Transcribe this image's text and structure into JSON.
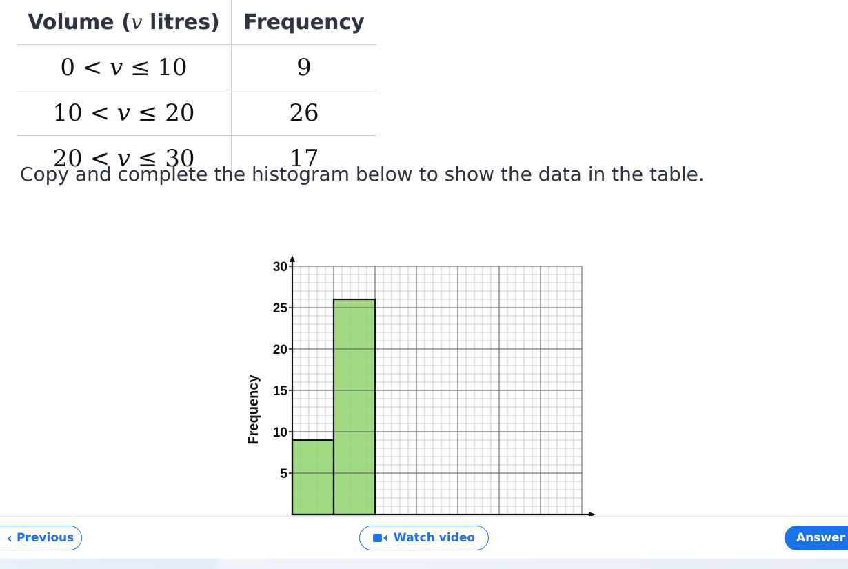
{
  "table": {
    "header": {
      "volume_prefix": "Volume (",
      "volume_var": "v",
      "volume_suffix": " litres)",
      "frequency": "Frequency"
    },
    "rows": [
      {
        "low": "0",
        "var": "v",
        "high": "10",
        "frequency": "9"
      },
      {
        "low": "10",
        "var": "v",
        "high": "20",
        "frequency": "26"
      },
      {
        "low": "20",
        "var": "v",
        "high": "30",
        "frequency": "17"
      }
    ]
  },
  "instruction": "Copy and complete the histogram below to show the data in the table.",
  "chart_data": {
    "type": "bar",
    "ylabel": "Frequency",
    "ylim": [
      0,
      30
    ],
    "y_ticks": [
      "5",
      "10",
      "15",
      "20",
      "25",
      "30"
    ],
    "xlim": [
      0,
      70
    ],
    "grid": true,
    "bars": [
      {
        "x0": 0,
        "x1": 10,
        "value": 9
      },
      {
        "x0": 10,
        "x1": 20,
        "value": 26
      }
    ],
    "colors": {
      "bar": "#92d36e",
      "grid_major": "#555555",
      "grid_minor": "#c8c8c8"
    }
  },
  "nav": {
    "previous_label": "Previous",
    "video_label": "Watch video",
    "answer_label": "Answer"
  },
  "colors": {
    "accent": "#1a73e8",
    "text": "#2b3440"
  },
  "icons": {
    "previous": "chevron-left-icon",
    "video": "video-camera-icon"
  }
}
